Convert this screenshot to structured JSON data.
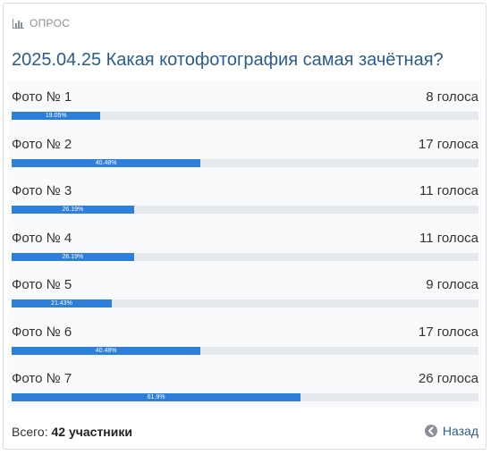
{
  "header": {
    "label": "ОПРОС",
    "icon": "bar-chart-icon"
  },
  "poll": {
    "title": "2025.04.25 Какая котофотография самая зачётная?",
    "options": [
      {
        "label": "Фото № 1",
        "votes": "8 голоса",
        "percent_text": "19.05%",
        "fraction": 0.1905
      },
      {
        "label": "Фото № 2",
        "votes": "17 голоса",
        "percent_text": "40.48%",
        "fraction": 0.4048
      },
      {
        "label": "Фото № 3",
        "votes": "11 голоса",
        "percent_text": "26.19%",
        "fraction": 0.2619
      },
      {
        "label": "Фото № 4",
        "votes": "11 голоса",
        "percent_text": "26.19%",
        "fraction": 0.2619
      },
      {
        "label": "Фото № 5",
        "votes": "9 голоса",
        "percent_text": "21.43%",
        "fraction": 0.2143
      },
      {
        "label": "Фото № 6",
        "votes": "17 голоса",
        "percent_text": "40.48%",
        "fraction": 0.4048
      },
      {
        "label": "Фото № 7",
        "votes": "26 голоса",
        "percent_text": "61.9%",
        "fraction": 0.619
      }
    ]
  },
  "footer": {
    "total_prefix": "Всего:",
    "total_value": "42 участники",
    "back_label": "Назад",
    "back_icon": "circle-arrow-left-icon"
  },
  "colors": {
    "accent": "#2d7fdb",
    "title": "#2a5d8f",
    "track": "#e6e9ee"
  }
}
